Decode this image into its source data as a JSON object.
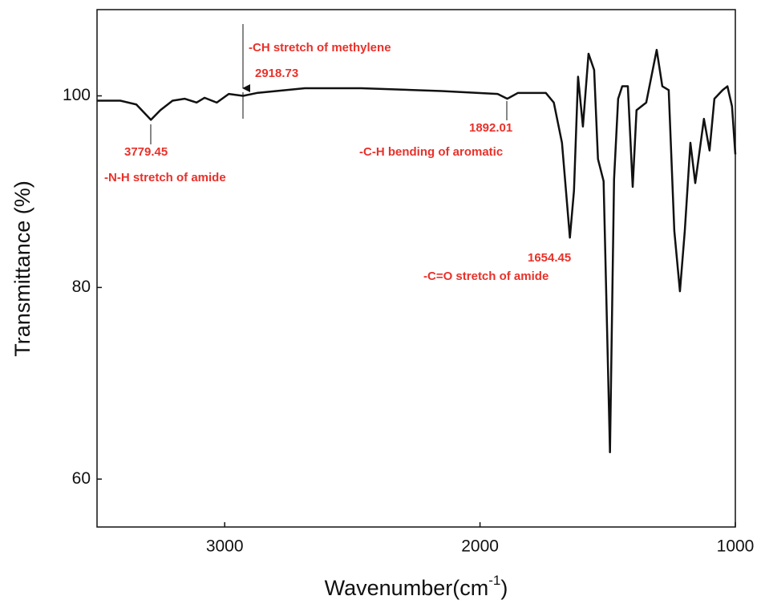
{
  "chart_data": {
    "type": "line",
    "x_label": [
      "Wavenumber(cm",
      "-1",
      ")"
    ],
    "y_label": "Transmittance (%)",
    "xlim": [
      3500,
      1000
    ],
    "ylim": [
      55,
      109
    ],
    "xticks": [
      3000,
      2000,
      1000
    ],
    "yticks": [
      60,
      80,
      100
    ],
    "grid": false,
    "series": [
      {
        "color": "#111111",
        "x": [
          3500,
          3409,
          3346,
          3289,
          3252,
          3204,
          3157,
          3110,
          3079,
          3031,
          2984,
          2928,
          2874,
          2686,
          2465,
          2151,
          1931,
          1893,
          1852,
          1742,
          1711,
          1679,
          1648,
          1632,
          1616,
          1597,
          1575,
          1553,
          1538,
          1516,
          1491,
          1475,
          1459,
          1443,
          1421,
          1402,
          1387,
          1349,
          1308,
          1286,
          1261,
          1239,
          1217,
          1198,
          1176,
          1157,
          1123,
          1101,
          1082,
          1050,
          1031,
          1013,
          1000
        ],
        "values": [
          99.5,
          99.5,
          99.1,
          97.5,
          98.5,
          99.5,
          99.7,
          99.3,
          99.8,
          99.3,
          100.2,
          100,
          100.3,
          100.8,
          100.8,
          100.5,
          100.2,
          99.7,
          100.3,
          100.3,
          99.3,
          95.1,
          85.2,
          90.1,
          102.0,
          96.8,
          104.4,
          102.7,
          93.4,
          91.1,
          62.8,
          91.3,
          99.7,
          101.0,
          101.0,
          90.5,
          98.5,
          99.3,
          104.8,
          101.0,
          100.6,
          85.9,
          79.6,
          85.9,
          95.1,
          90.9,
          97.6,
          94.3,
          99.7,
          100.6,
          101.0,
          98.9,
          93.9
        ]
      }
    ],
    "annotations": [
      "-CH stretch of methylene",
      "2918.73",
      "3779.45",
      "-N-H stretch of amide",
      "1892.01",
      "-C-H bending of aromatic",
      "1654.45",
      "-C=O stretch of amide"
    ]
  }
}
